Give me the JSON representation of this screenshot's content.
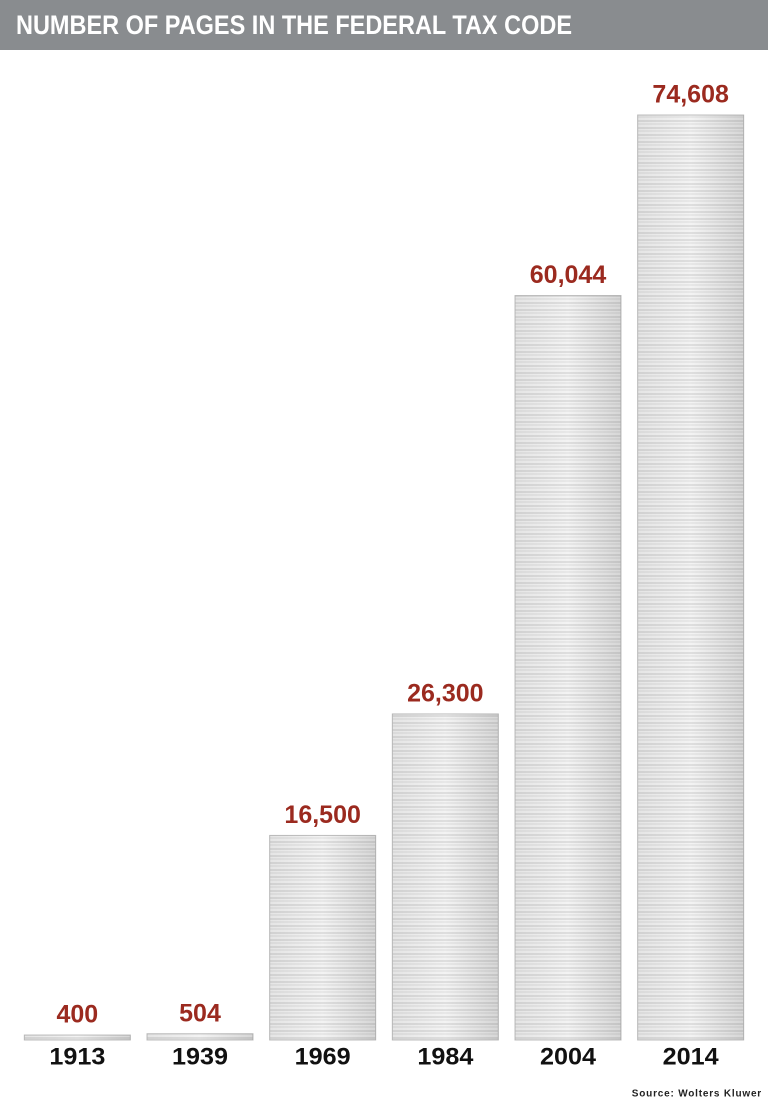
{
  "chart_data": {
    "type": "bar",
    "title": "NUMBER OF PAGES IN THE FEDERAL TAX CODE",
    "categories": [
      "1913",
      "1939",
      "1969",
      "1984",
      "2004",
      "2014"
    ],
    "values": [
      400,
      504,
      16500,
      26300,
      60044,
      74608
    ],
    "value_labels": [
      "400",
      "504",
      "16,500",
      "26,300",
      "60,044",
      "74,608"
    ],
    "source": "Source: Wolters Kluwer",
    "color": "#e4e4e4",
    "label_color": "#9b2a1f"
  }
}
